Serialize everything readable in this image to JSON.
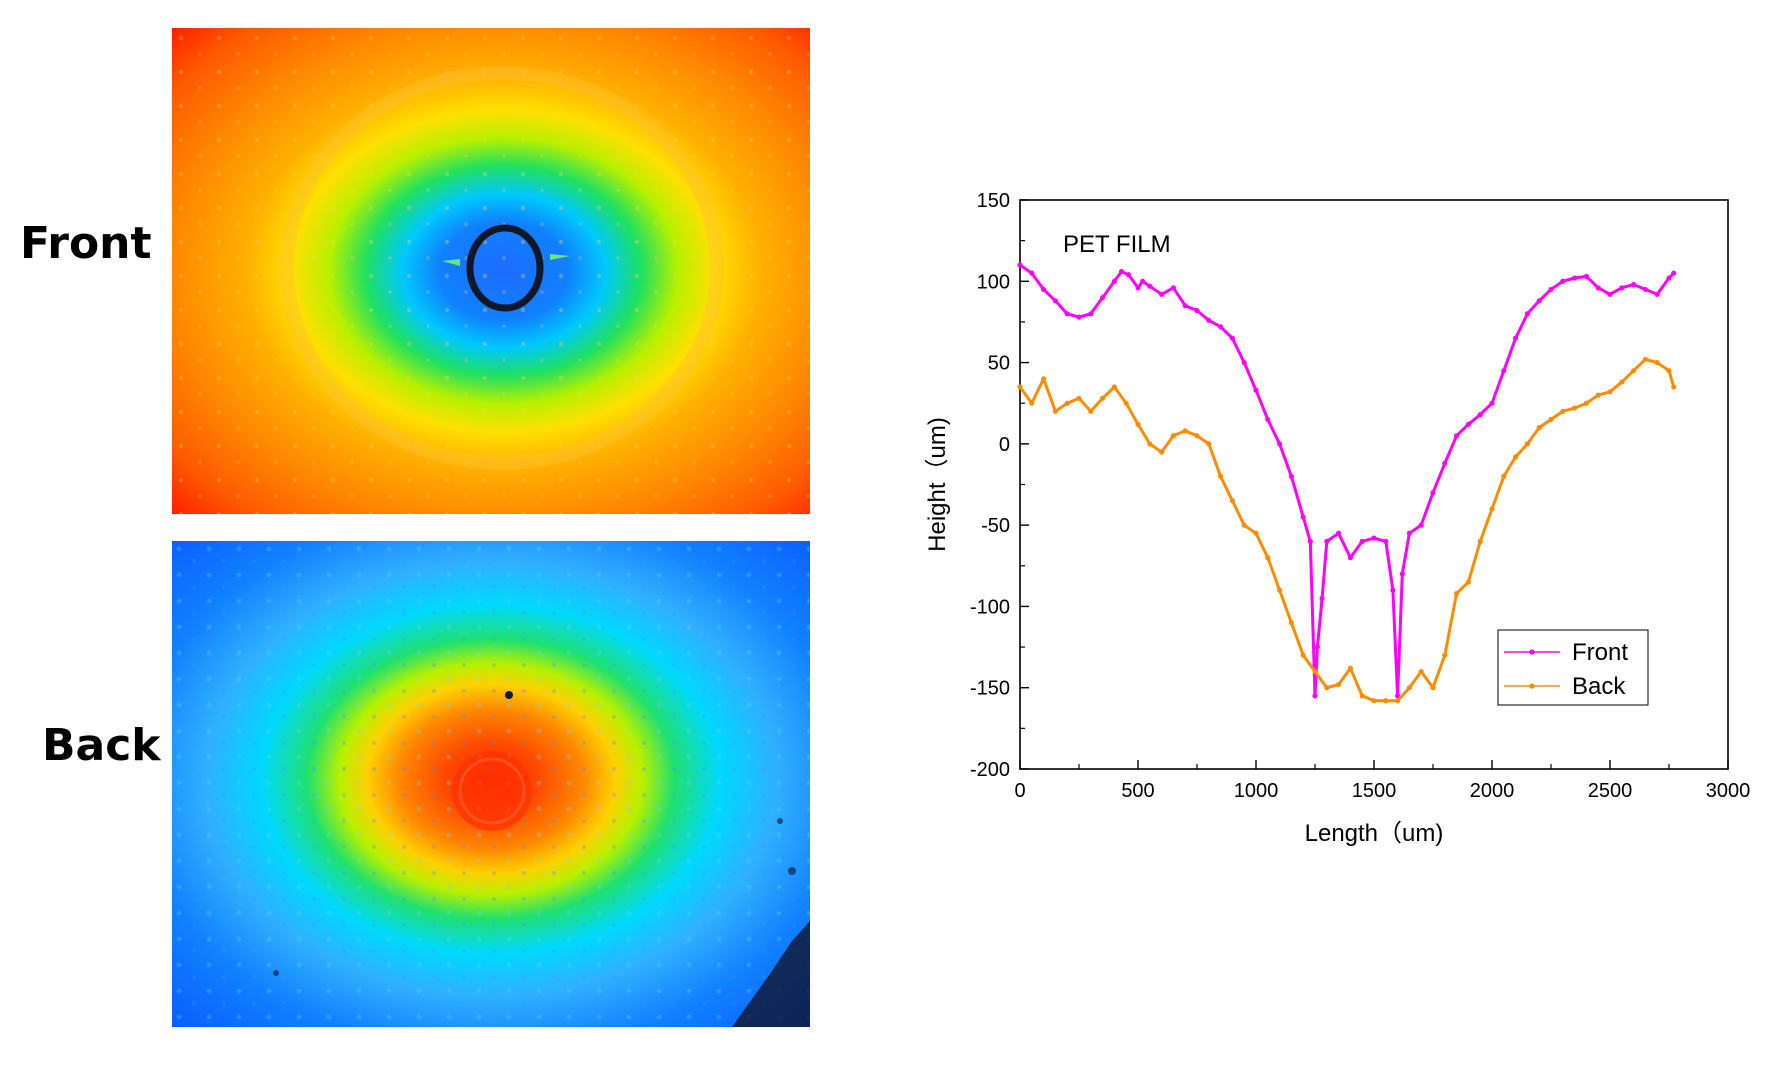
{
  "panels": {
    "front_label": "Front",
    "back_label": "Back"
  },
  "colors": {
    "front_series": "#ff00ff",
    "back_series": "#ff8c00",
    "heatmap_palette": [
      "#0000ff",
      "#00bfff",
      "#00ff80",
      "#ffff00",
      "#ff8c00",
      "#ff2000"
    ]
  },
  "chart_data": [
    {
      "type": "heatmap",
      "title": "",
      "label": "Front",
      "description_of_levels": [
        "edges high (red)",
        "orange ring",
        "yellow",
        "green",
        "cyan",
        "blue center",
        "dark ring crater"
      ]
    },
    {
      "type": "heatmap",
      "title": "",
      "label": "Back",
      "description_of_levels": [
        "edges low (blue)",
        "cyan",
        "green",
        "yellow",
        "orange",
        "red center"
      ]
    },
    {
      "type": "line",
      "title": "",
      "annotation": "PET FILM",
      "xlabel": "Length（um)",
      "ylabel": "Height（um)",
      "xlim": [
        0,
        3000
      ],
      "ylim": [
        -200,
        150
      ],
      "xticks": [
        0,
        500,
        1000,
        1500,
        2000,
        2500,
        3000
      ],
      "yticks": [
        -200,
        -150,
        -100,
        -50,
        0,
        50,
        100,
        150
      ],
      "grid": false,
      "legend_position": "bottom-right",
      "series": [
        {
          "name": "Front",
          "color": "#ff00ff",
          "x": [
            0,
            50,
            100,
            150,
            200,
            250,
            300,
            350,
            400,
            430,
            460,
            500,
            520,
            550,
            600,
            650,
            700,
            750,
            800,
            850,
            900,
            950,
            1000,
            1050,
            1100,
            1150,
            1200,
            1230,
            1250,
            1260,
            1280,
            1300,
            1350,
            1400,
            1450,
            1500,
            1550,
            1580,
            1600,
            1620,
            1650,
            1700,
            1750,
            1800,
            1850,
            1900,
            1950,
            2000,
            2050,
            2100,
            2150,
            2200,
            2250,
            2300,
            2350,
            2400,
            2450,
            2500,
            2550,
            2600,
            2650,
            2700,
            2750,
            2770
          ],
          "y": [
            110,
            105,
            95,
            88,
            80,
            78,
            80,
            90,
            100,
            106,
            104,
            96,
            100,
            97,
            92,
            96,
            85,
            82,
            76,
            72,
            65,
            50,
            33,
            15,
            0,
            -20,
            -45,
            -60,
            -155,
            -125,
            -95,
            -60,
            -55,
            -70,
            -60,
            -58,
            -60,
            -90,
            -155,
            -80,
            -55,
            -50,
            -30,
            -12,
            5,
            12,
            18,
            25,
            45,
            65,
            80,
            88,
            95,
            100,
            102,
            103,
            96,
            92,
            96,
            98,
            95,
            92,
            102,
            105
          ]
        },
        {
          "name": "Back",
          "color": "#ff8c00",
          "x": [
            0,
            50,
            100,
            150,
            200,
            250,
            300,
            350,
            400,
            450,
            500,
            550,
            600,
            650,
            700,
            750,
            800,
            850,
            900,
            950,
            1000,
            1050,
            1100,
            1150,
            1200,
            1250,
            1300,
            1350,
            1400,
            1450,
            1500,
            1550,
            1600,
            1650,
            1700,
            1750,
            1800,
            1850,
            1900,
            1950,
            2000,
            2050,
            2100,
            2150,
            2200,
            2250,
            2300,
            2350,
            2400,
            2450,
            2500,
            2550,
            2600,
            2650,
            2700,
            2750,
            2770
          ],
          "y": [
            35,
            25,
            40,
            20,
            25,
            28,
            20,
            28,
            35,
            25,
            12,
            0,
            -5,
            5,
            8,
            5,
            0,
            -20,
            -35,
            -50,
            -55,
            -70,
            -90,
            -110,
            -130,
            -140,
            -150,
            -148,
            -138,
            -155,
            -158,
            -158,
            -158,
            -150,
            -140,
            -150,
            -130,
            -92,
            -85,
            -60,
            -40,
            -20,
            -8,
            0,
            10,
            15,
            20,
            22,
            25,
            30,
            32,
            38,
            45,
            52,
            50,
            45,
            35
          ]
        }
      ]
    }
  ]
}
